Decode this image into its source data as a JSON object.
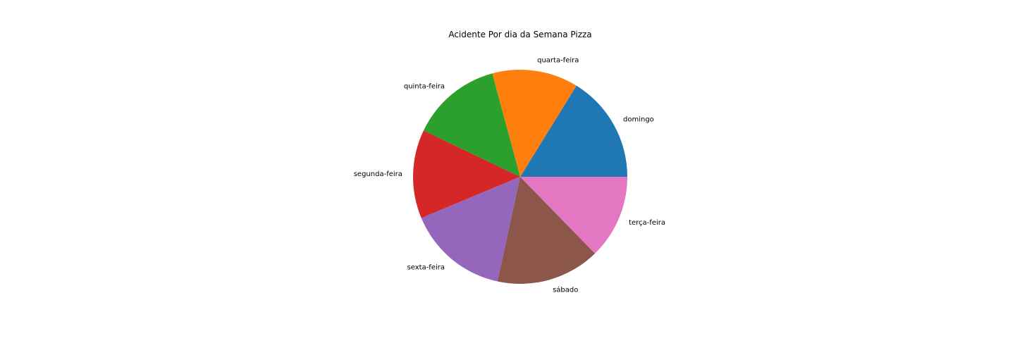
{
  "chart_data": {
    "type": "pie",
    "title": "Acidente Por dia da Semana Pizza",
    "legend": "none",
    "start_angle_deg": 0,
    "direction": "counterclockwise",
    "categories": [
      "domingo",
      "quarta-feira",
      "quinta-feira",
      "segunda-feira",
      "sexta-feira",
      "sábado",
      "terça-feira"
    ],
    "values": [
      16.2,
      13.0,
      13.7,
      13.4,
      15.3,
      15.7,
      12.7
    ],
    "colors": [
      "#1f77b4",
      "#ff7f0e",
      "#2ca02c",
      "#d62728",
      "#9467bd",
      "#8c564b",
      "#e377c2"
    ]
  }
}
